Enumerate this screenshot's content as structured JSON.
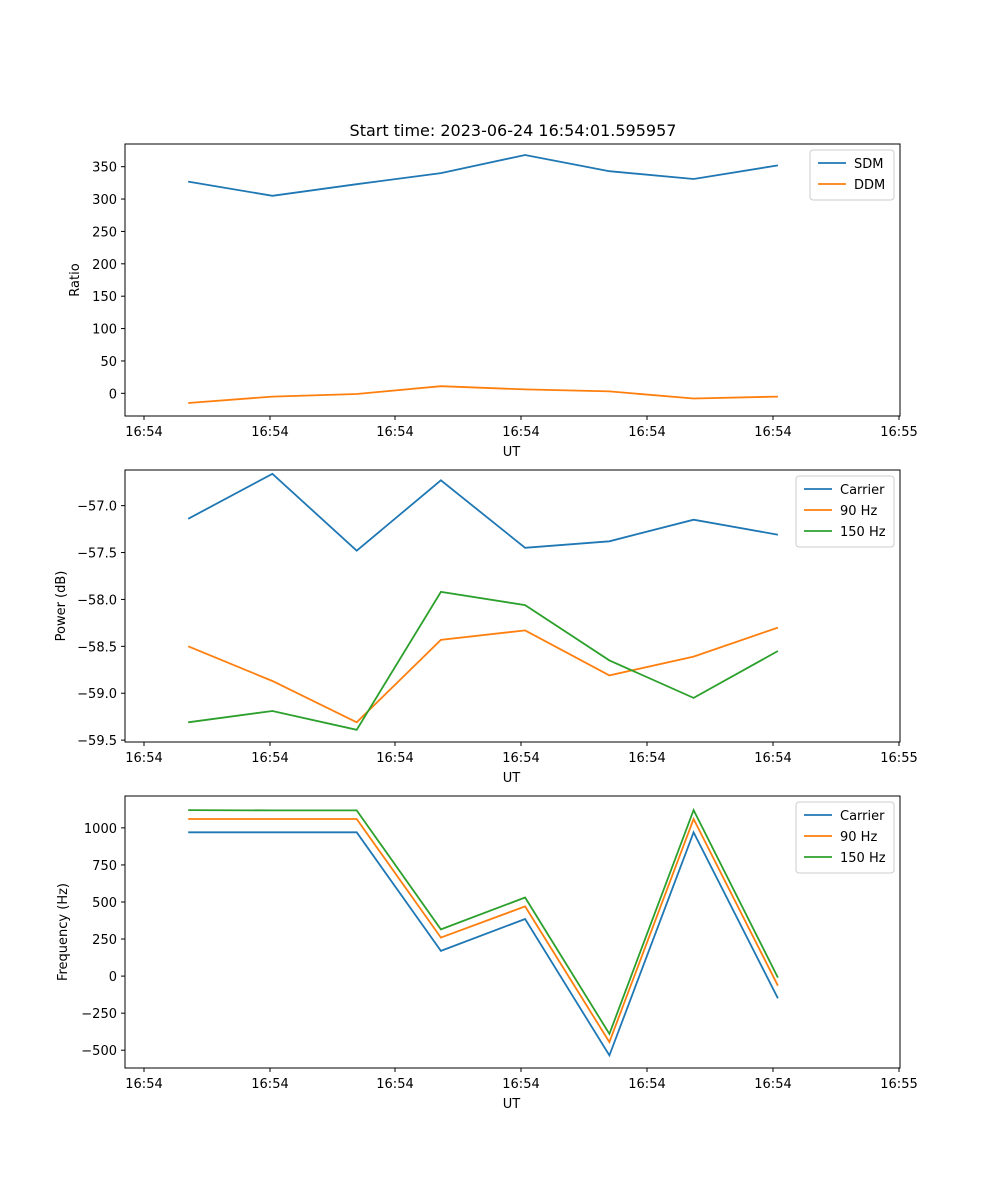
{
  "figure": {
    "title": "Start time: 2023-06-24 16:54:01.595957"
  },
  "chart_data": [
    {
      "type": "line",
      "title": "Start time: 2023-06-24 16:54:01.595957",
      "xlabel": "UT",
      "ylabel": "Ratio",
      "x_tick_labels": [
        "16:54",
        "16:54",
        "16:54",
        "16:54",
        "16:54",
        "16:54",
        "16:55"
      ],
      "x": [
        1,
        2,
        3,
        4,
        5,
        6,
        7,
        8
      ],
      "xlim": [
        0.25,
        9.45
      ],
      "ylim": [
        -35,
        385
      ],
      "yticks": [
        0,
        50,
        100,
        150,
        200,
        250,
        300,
        350
      ],
      "legend": "top-right",
      "series": [
        {
          "name": "SDM",
          "color": "#1f77b4",
          "values": [
            327,
            305,
            323,
            340,
            368,
            343,
            331,
            352
          ]
        },
        {
          "name": "DDM",
          "color": "#ff7f0e",
          "values": [
            -15,
            -5,
            -1,
            11,
            6,
            3,
            -8,
            -5
          ]
        }
      ]
    },
    {
      "type": "line",
      "title": "",
      "xlabel": "UT",
      "ylabel": "Power (dB)",
      "x_tick_labels": [
        "16:54",
        "16:54",
        "16:54",
        "16:54",
        "16:54",
        "16:54",
        "16:55"
      ],
      "x": [
        1,
        2,
        3,
        4,
        5,
        6,
        7,
        8
      ],
      "xlim": [
        0.25,
        9.45
      ],
      "ylim": [
        -59.52,
        -56.62
      ],
      "yticks": [
        -57.0,
        -57.5,
        -58.0,
        -58.5,
        -59.0,
        -59.5
      ],
      "ytick_labels": [
        "−57.0",
        "−57.5",
        "−58.0",
        "−58.5",
        "−59.0",
        "−59.5"
      ],
      "legend": "top-right",
      "series": [
        {
          "name": "Carrier",
          "color": "#1f77b4",
          "values": [
            -57.14,
            -56.66,
            -57.48,
            -56.73,
            -57.45,
            -57.38,
            -57.15,
            -57.31
          ]
        },
        {
          "name": "90 Hz",
          "color": "#ff7f0e",
          "values": [
            -58.5,
            -58.87,
            -59.31,
            -58.43,
            -58.33,
            -58.81,
            -58.61,
            -58.3
          ]
        },
        {
          "name": "150 Hz",
          "color": "#2ca02c",
          "values": [
            -59.31,
            -59.19,
            -59.39,
            -57.92,
            -58.06,
            -58.65,
            -59.05,
            -58.55
          ]
        }
      ]
    },
    {
      "type": "line",
      "title": "",
      "xlabel": "UT",
      "ylabel": "Frequency (Hz)",
      "x_tick_labels": [
        "16:54",
        "16:54",
        "16:54",
        "16:54",
        "16:54",
        "16:54",
        "16:55"
      ],
      "x": [
        1,
        2,
        3,
        4,
        5,
        6,
        7,
        8
      ],
      "xlim": [
        0.25,
        9.45
      ],
      "ylim": [
        -620,
        1215
      ],
      "yticks": [
        1000,
        750,
        500,
        250,
        0,
        -250,
        -500
      ],
      "ytick_labels": [
        "1000",
        "750",
        "500",
        "250",
        "0",
        "−250",
        "−500"
      ],
      "legend": "top-right",
      "series": [
        {
          "name": "Carrier",
          "color": "#1f77b4",
          "values": [
            970,
            970,
            970,
            170,
            385,
            -535,
            970,
            -150
          ]
        },
        {
          "name": "90 Hz",
          "color": "#ff7f0e",
          "values": [
            1060,
            1060,
            1060,
            260,
            470,
            -445,
            1060,
            -65
          ]
        },
        {
          "name": "150 Hz",
          "color": "#2ca02c",
          "values": [
            1120,
            1118,
            1118,
            315,
            530,
            -390,
            1120,
            -10
          ]
        }
      ]
    }
  ]
}
